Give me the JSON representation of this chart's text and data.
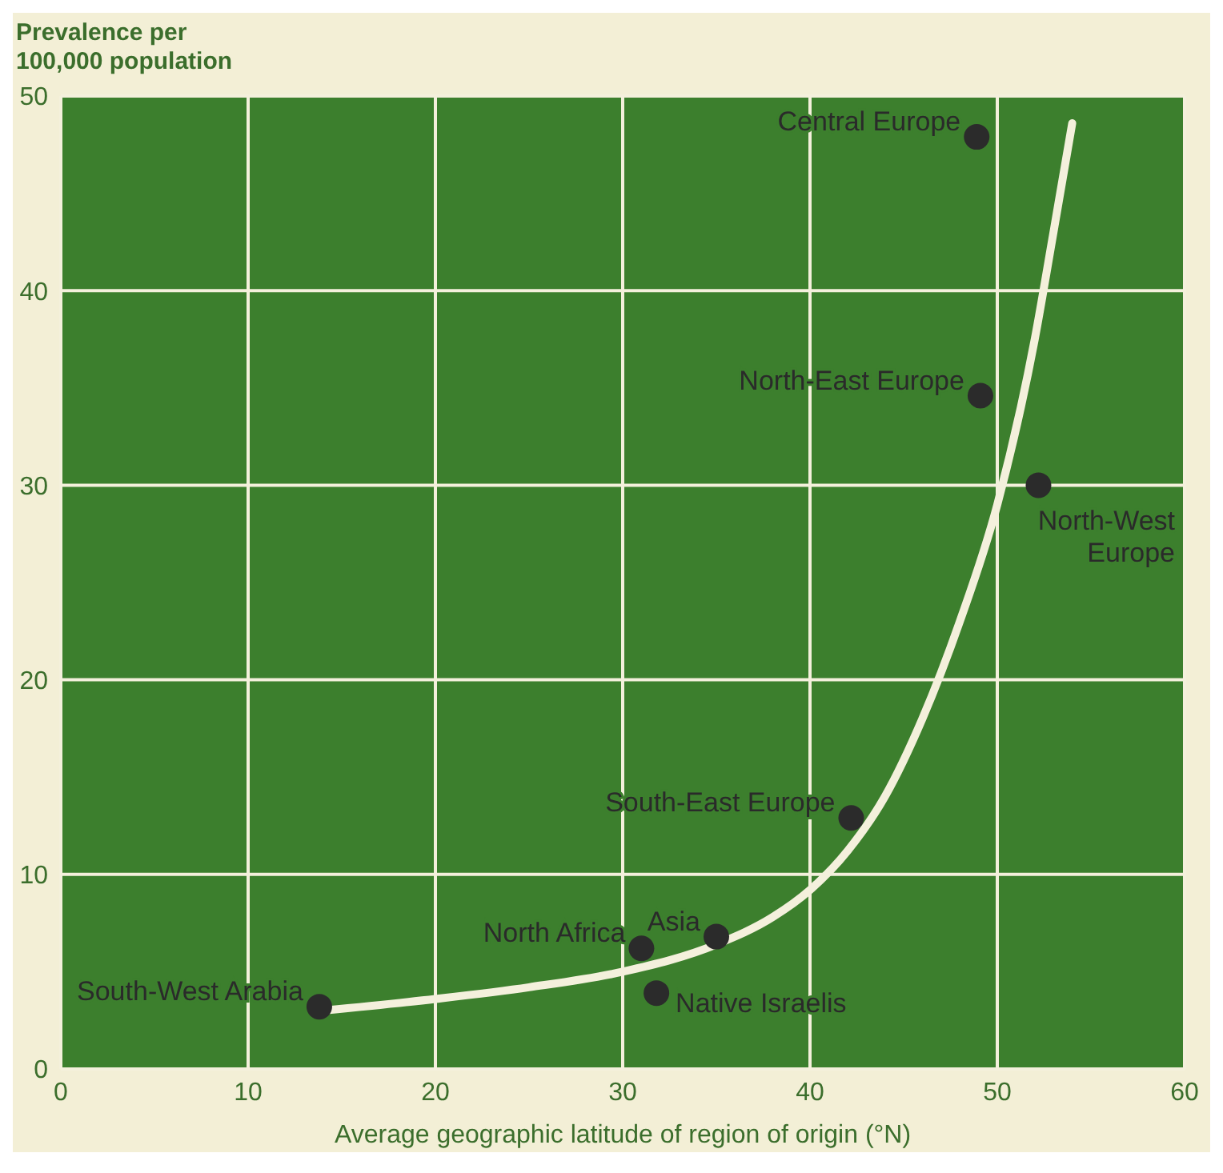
{
  "chart_data": {
    "type": "scatter",
    "ylabel": "Prevalence per 100,000 population",
    "xlabel": "Average geographic latitude of region of origin (°N)",
    "xlim": [
      0,
      60
    ],
    "xticks": [
      0,
      10,
      20,
      30,
      40,
      50,
      60
    ],
    "ylim": [
      0,
      50
    ],
    "yticks": [
      0,
      10,
      20,
      30,
      40,
      50
    ],
    "grid": true,
    "legend": false,
    "marker": "circle",
    "series": [
      {
        "type": "scatter",
        "color": "#2b2b2b",
        "x": [
          13.8,
          31.0,
          31.8,
          35.0,
          42.2,
          52.2,
          49.1,
          48.9
        ],
        "values": [
          3.2,
          6.2,
          3.9,
          6.8,
          12.9,
          30.0,
          34.6,
          47.9
        ]
      },
      {
        "type": "line",
        "color": "#f4f0dc",
        "marker": "none",
        "x": [
          14,
          20,
          25,
          30,
          35,
          38,
          40,
          42,
          44,
          46,
          48,
          50,
          52,
          53,
          54
        ],
        "values": [
          3.0,
          3.6,
          4.2,
          5.0,
          6.4,
          7.8,
          9.2,
          11.2,
          14.0,
          18.0,
          23.0,
          29.0,
          37.5,
          43.0,
          48.6
        ]
      }
    ],
    "annotations": [
      {
        "text": "South-West Arabia",
        "x": 13.8,
        "y": 3.2
      },
      {
        "text": "North Africa",
        "x": 31.0,
        "y": 6.2
      },
      {
        "text": "Native Israelis",
        "x": 31.8,
        "y": 3.9
      },
      {
        "text": "Asia",
        "x": 35.0,
        "y": 6.8
      },
      {
        "text": "South-East Europe",
        "x": 42.2,
        "y": 12.9
      },
      {
        "text": "North-West Europe",
        "x": 52.2,
        "y": 30.0
      },
      {
        "text": "North-East Europe",
        "x": 49.1,
        "y": 34.6
      },
      {
        "text": "Central Europe",
        "x": 48.9,
        "y": 47.9
      }
    ]
  }
}
